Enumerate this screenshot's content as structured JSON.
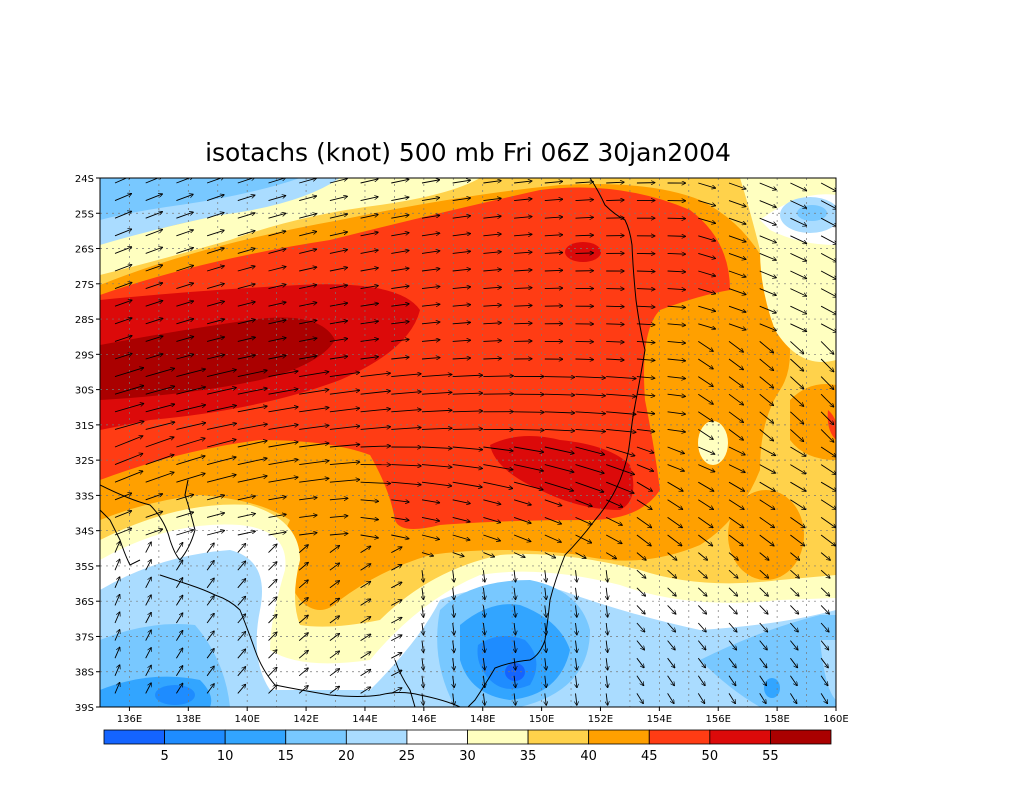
{
  "title": "isotachs (knot) 500 mb Fri 06Z 30jan2004",
  "lat_labels": [
    "24S",
    "25S",
    "26S",
    "27S",
    "28S",
    "29S",
    "30S",
    "31S",
    "32S",
    "33S",
    "34S",
    "35S",
    "36S",
    "37S",
    "38S",
    "39S"
  ],
  "lon_labels": [
    "136E",
    "138E",
    "140E",
    "142E",
    "144E",
    "146E",
    "148E",
    "150E",
    "152E",
    "154E",
    "156E",
    "158E",
    "160E"
  ],
  "colorbar": {
    "colors": [
      "#1464ff",
      "#1e8cff",
      "#32a5ff",
      "#78c8ff",
      "#aadcff",
      "#ffffff",
      "#ffffc0",
      "#ffd24b",
      "#ffa000",
      "#ff3c14",
      "#dc0a0a",
      "#aa0000"
    ],
    "labels": [
      "5",
      "10",
      "15",
      "20",
      "25",
      "30",
      "35",
      "40",
      "45",
      "50",
      "55"
    ]
  },
  "colors": {
    "very_light_blue": "#aadcff",
    "light_blue": "#78c8ff",
    "mid_blue": "#32a5ff",
    "blue": "#1e8cff",
    "deep_blue": "#1464ff",
    "pale_yellow": "#ffffc0",
    "yellow": "#ffd24b",
    "orange": "#ffa000",
    "red_orange": "#ff3c14",
    "red": "#dc0a0a",
    "dark_red": "#aa0000"
  }
}
